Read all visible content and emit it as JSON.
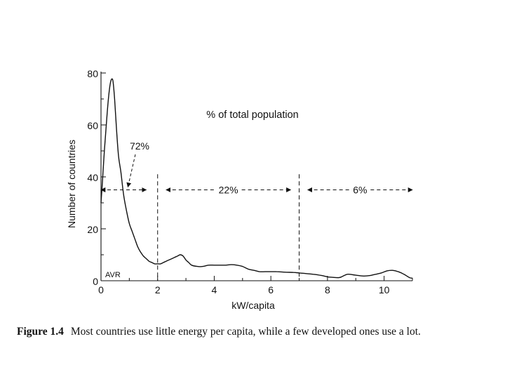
{
  "chart_data": {
    "type": "line",
    "title": "% of total population",
    "xlabel": "kW/capita",
    "ylabel": "Number of countries",
    "xlim": [
      0,
      11
    ],
    "ylim": [
      0,
      80
    ],
    "x_ticks": [
      0,
      2,
      4,
      6,
      8,
      10
    ],
    "y_ticks": [
      0,
      20,
      40,
      60,
      80
    ],
    "grid": false,
    "series": [
      {
        "name": "countries",
        "x": [
          0,
          0.05,
          0.12,
          0.2,
          0.28,
          0.35,
          0.42,
          0.48,
          0.55,
          0.62,
          0.7,
          0.8,
          0.9,
          1.0,
          1.1,
          1.2,
          1.3,
          1.4,
          1.5,
          1.6,
          1.7,
          1.8,
          1.9,
          2.0,
          2.1,
          2.2,
          2.3,
          2.4,
          2.5,
          2.6,
          2.7,
          2.8,
          2.9,
          3.0,
          3.1,
          3.2,
          3.4,
          3.6,
          3.8,
          4.0,
          4.2,
          4.4,
          4.6,
          4.8,
          5.0,
          5.2,
          5.4,
          5.6,
          5.8,
          6.0,
          6.2,
          6.5,
          6.8,
          7.0,
          7.2,
          7.5,
          7.8,
          8.0,
          8.2,
          8.4,
          8.5,
          8.7,
          8.9,
          9.1,
          9.3,
          9.5,
          9.7,
          9.9,
          10.1,
          10.3,
          10.5,
          10.7,
          10.9,
          11.0
        ],
        "values": [
          30,
          38,
          50,
          62,
          72,
          77,
          77,
          70,
          58,
          48,
          42,
          33,
          27,
          22,
          19,
          16,
          13,
          11,
          9.5,
          8.5,
          7.5,
          7,
          6.5,
          6.5,
          6.5,
          7,
          7.5,
          8,
          8.5,
          9,
          9.5,
          10,
          9.5,
          8,
          7,
          6,
          5.5,
          5.5,
          6,
          6,
          6,
          6,
          6.2,
          6,
          5.5,
          4.5,
          4,
          3.5,
          3.5,
          3.5,
          3.5,
          3.3,
          3.2,
          3,
          2.8,
          2.5,
          2,
          1.5,
          1.3,
          1.2,
          1.5,
          2.5,
          2.3,
          2,
          1.8,
          2,
          2.5,
          3,
          3.8,
          4,
          3.5,
          2.5,
          1.2,
          1
        ]
      }
    ],
    "avr_label": "AVR",
    "annotations": [
      {
        "text": "72%",
        "x_from": 0,
        "x_to": 1.6,
        "arrow_y": 35,
        "pointer_to": [
          0.95,
          35
        ]
      },
      {
        "text": "22%",
        "x_from": 2.3,
        "x_to": 6.7,
        "arrow_y": 35
      },
      {
        "text": "6%",
        "x_from": 7.3,
        "x_to": 11.0,
        "arrow_y": 35
      }
    ],
    "dividers_x": [
      2,
      7
    ]
  },
  "caption": {
    "label": "Figure 1.4",
    "text": "Most countries use little energy per capita, while a few developed ones use a lot."
  }
}
